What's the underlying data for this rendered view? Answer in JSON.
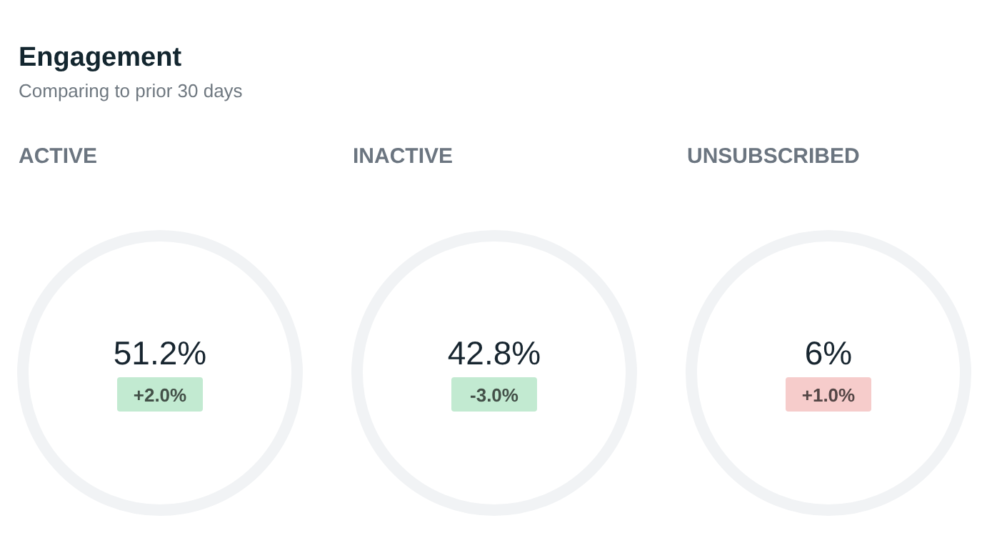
{
  "chart_data": {
    "type": "other",
    "title": "Engagement",
    "subtitle": "Comparing to prior 30 days",
    "data_labels": true,
    "categories": [
      "ACTIVE",
      "INACTIVE",
      "UNSUBSCRIBED"
    ],
    "series": [
      {
        "values": [
          51.2,
          42.8,
          6
        ],
        "value_labels": [
          "51.2%",
          "42.8%",
          "6%"
        ],
        "color": "#f1f3f5"
      },
      {
        "values": [
          2.0,
          -3.0,
          1.0
        ],
        "value_labels": [
          "+2.0%",
          "-3.0%",
          "+1.0%"
        ],
        "colors": [
          "#c2ead1",
          "#c2ead1",
          "#f6cccb"
        ]
      }
    ]
  }
}
